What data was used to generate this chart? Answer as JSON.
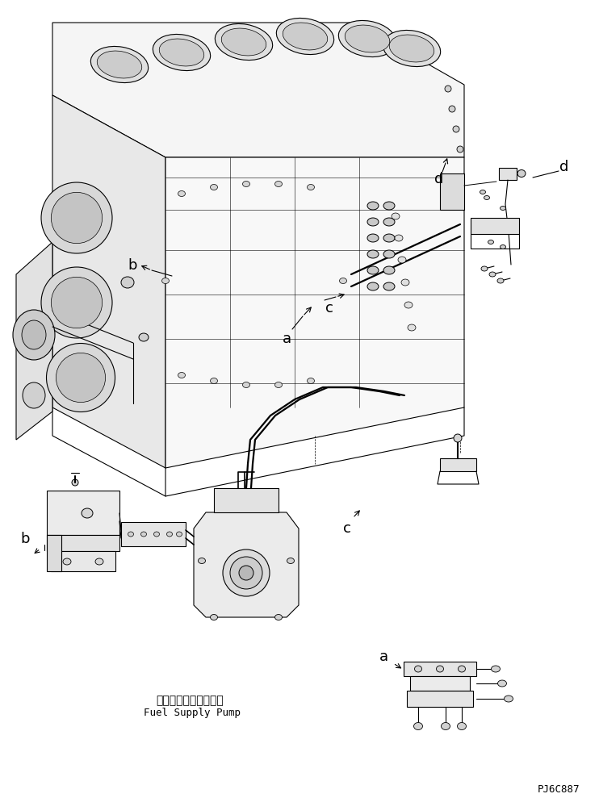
{
  "bg_color": "#ffffff",
  "line_color": "#000000",
  "fig_width": 7.42,
  "fig_height": 9.89,
  "dpi": 100,
  "part_code": "PJ6C887",
  "label_a": "a",
  "label_b": "b",
  "label_c": "c",
  "label_d": "d",
  "jp_text": "フェルサプライポンプ",
  "en_text": "Fuel Supply Pump",
  "font_size_label": 13,
  "font_size_part": 9,
  "font_size_jp": 10,
  "font_size_en": 9
}
